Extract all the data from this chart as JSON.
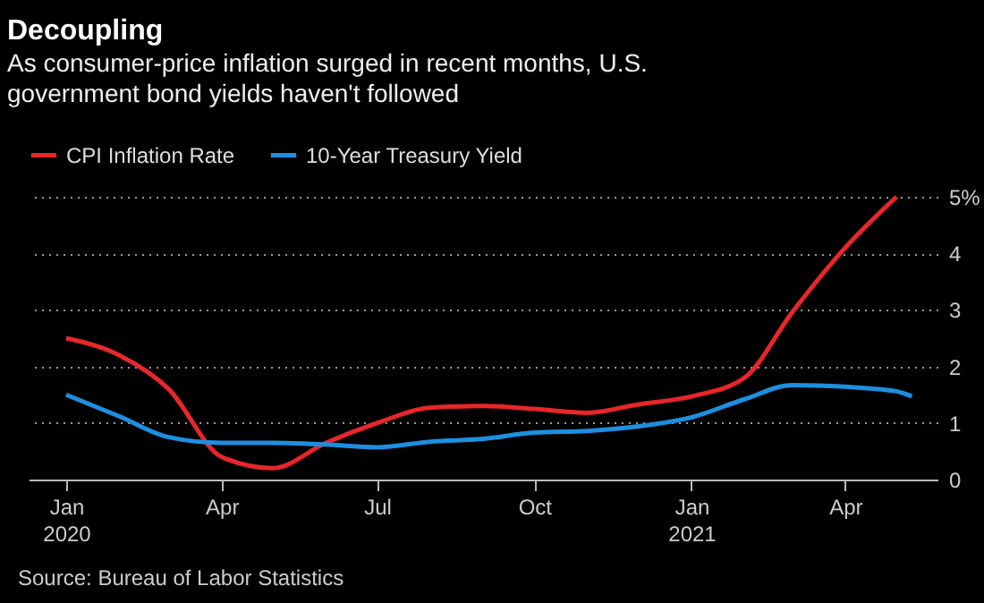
{
  "chart_data": {
    "type": "line",
    "title": "Decoupling",
    "subtitle": "As consumer-price inflation surged in recent months, U.S. government bond yields haven't followed",
    "x": [
      "2020-01",
      "2020-02",
      "2020-03",
      "2020-04",
      "2020-05",
      "2020-06",
      "2020-07",
      "2020-08",
      "2020-09",
      "2020-10",
      "2020-11",
      "2020-12",
      "2021-01",
      "2021-02",
      "2021-03",
      "2021-04",
      "2021-05"
    ],
    "series": [
      {
        "name": "CPI Inflation Rate",
        "color": "#e8262a",
        "values": [
          2.5,
          2.2,
          1.6,
          0.4,
          0.2,
          0.65,
          1.0,
          1.27,
          1.3,
          1.25,
          1.18,
          1.33,
          1.47,
          1.8,
          2.96,
          4.1,
          5.0
        ]
      },
      {
        "name": "10-Year Treasury Yield",
        "color": "#1d8fe0",
        "x": [
          "2020-01",
          "2020-02",
          "2020-03",
          "2020-04",
          "2020-05",
          "2020-06",
          "2020-07",
          "2020-08",
          "2020-09",
          "2020-10",
          "2020-11",
          "2020-12",
          "2021-01",
          "2021-02",
          "2021-03",
          "2021-04",
          "2021-05",
          "2021-05-10"
        ],
        "values": [
          1.5,
          1.12,
          0.75,
          0.65,
          0.65,
          0.62,
          0.57,
          0.67,
          0.72,
          0.83,
          0.86,
          0.94,
          1.1,
          1.42,
          1.67,
          1.64,
          1.56,
          1.47
        ]
      }
    ],
    "xlim": [
      "2019-12-10",
      "2021-05-25"
    ],
    "xticks": [
      {
        "value": "2020-01",
        "label": "Jan 2020"
      },
      {
        "value": "2020-04",
        "label": "Apr"
      },
      {
        "value": "2020-07",
        "label": "Jul"
      },
      {
        "value": "2020-10",
        "label": "Oct"
      },
      {
        "value": "2021-01",
        "label": "Jan 2021"
      },
      {
        "value": "2021-04",
        "label": "Apr"
      }
    ],
    "ylim": [
      0,
      5
    ],
    "yticks": [
      0,
      1,
      2,
      3,
      4,
      {
        "value": 5,
        "label": "5%"
      }
    ],
    "grid": "y",
    "legend": "top left",
    "annotations": [
      "Source: Bureau of Labor Statistics"
    ]
  }
}
